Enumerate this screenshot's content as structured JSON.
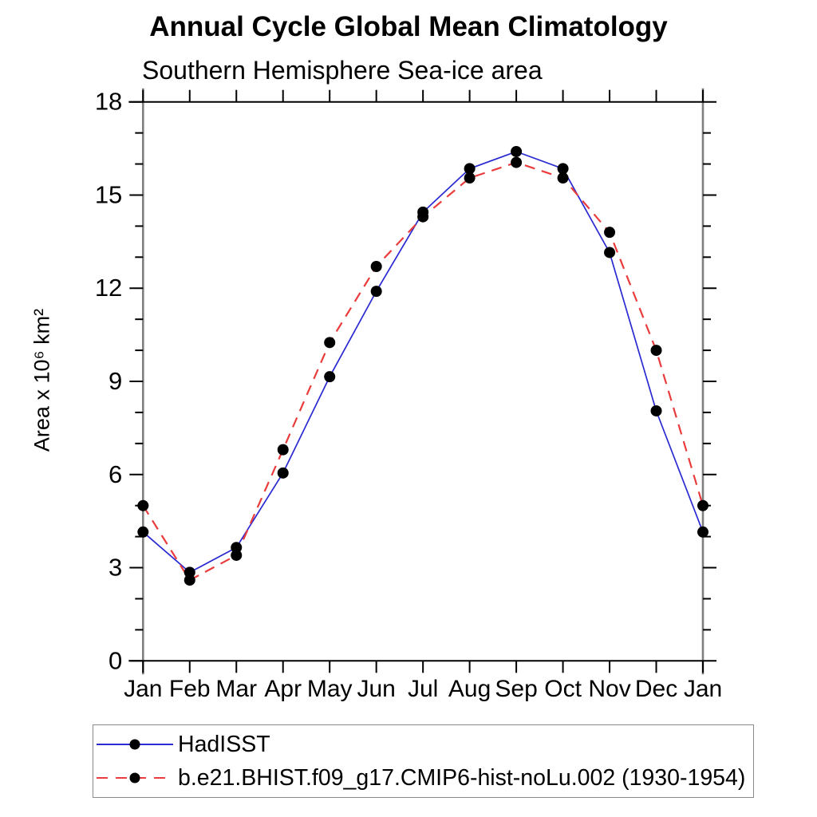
{
  "title": "Annual Cycle Global Mean Climatology",
  "subtitle": "Southern Hemisphere Sea-ice area",
  "chart_data": {
    "type": "line",
    "title": "Annual Cycle Global Mean Climatology",
    "subtitle": "Southern Hemisphere Sea-ice area",
    "xlabel": "",
    "ylabel": "Area x 10⁶ km²",
    "categories": [
      "Jan",
      "Feb",
      "Mar",
      "Apr",
      "May",
      "Jun",
      "Jul",
      "Aug",
      "Sep",
      "Oct",
      "Nov",
      "Dec",
      "Jan"
    ],
    "ylim": [
      0,
      18
    ],
    "yticks_major": [
      0,
      3,
      6,
      9,
      12,
      15,
      18
    ],
    "ytick_minor_interval": 1,
    "grid": false,
    "legend_position": "bottom-left-box",
    "frame_color": "#000000",
    "side_line_color": "#7f7f7f",
    "marker_color": "#000000",
    "series": [
      {
        "name": "HadISST",
        "color": "#2a2ad2",
        "style": "solid",
        "marker": "filled-circle",
        "values": [
          4.15,
          2.85,
          3.65,
          6.05,
          9.15,
          11.9,
          14.45,
          15.85,
          16.4,
          15.85,
          13.15,
          8.05,
          4.15
        ]
      },
      {
        "name": "b.e21.BHIST.f09_g17.CMIP6-hist-noLu.002 (1930-1954)",
        "color": "#ea3c3c",
        "style": "dashed",
        "marker": "filled-circle",
        "values": [
          5.0,
          2.6,
          3.4,
          6.8,
          10.25,
          12.7,
          14.3,
          15.55,
          16.05,
          15.55,
          13.8,
          10.0,
          5.0
        ]
      }
    ]
  }
}
